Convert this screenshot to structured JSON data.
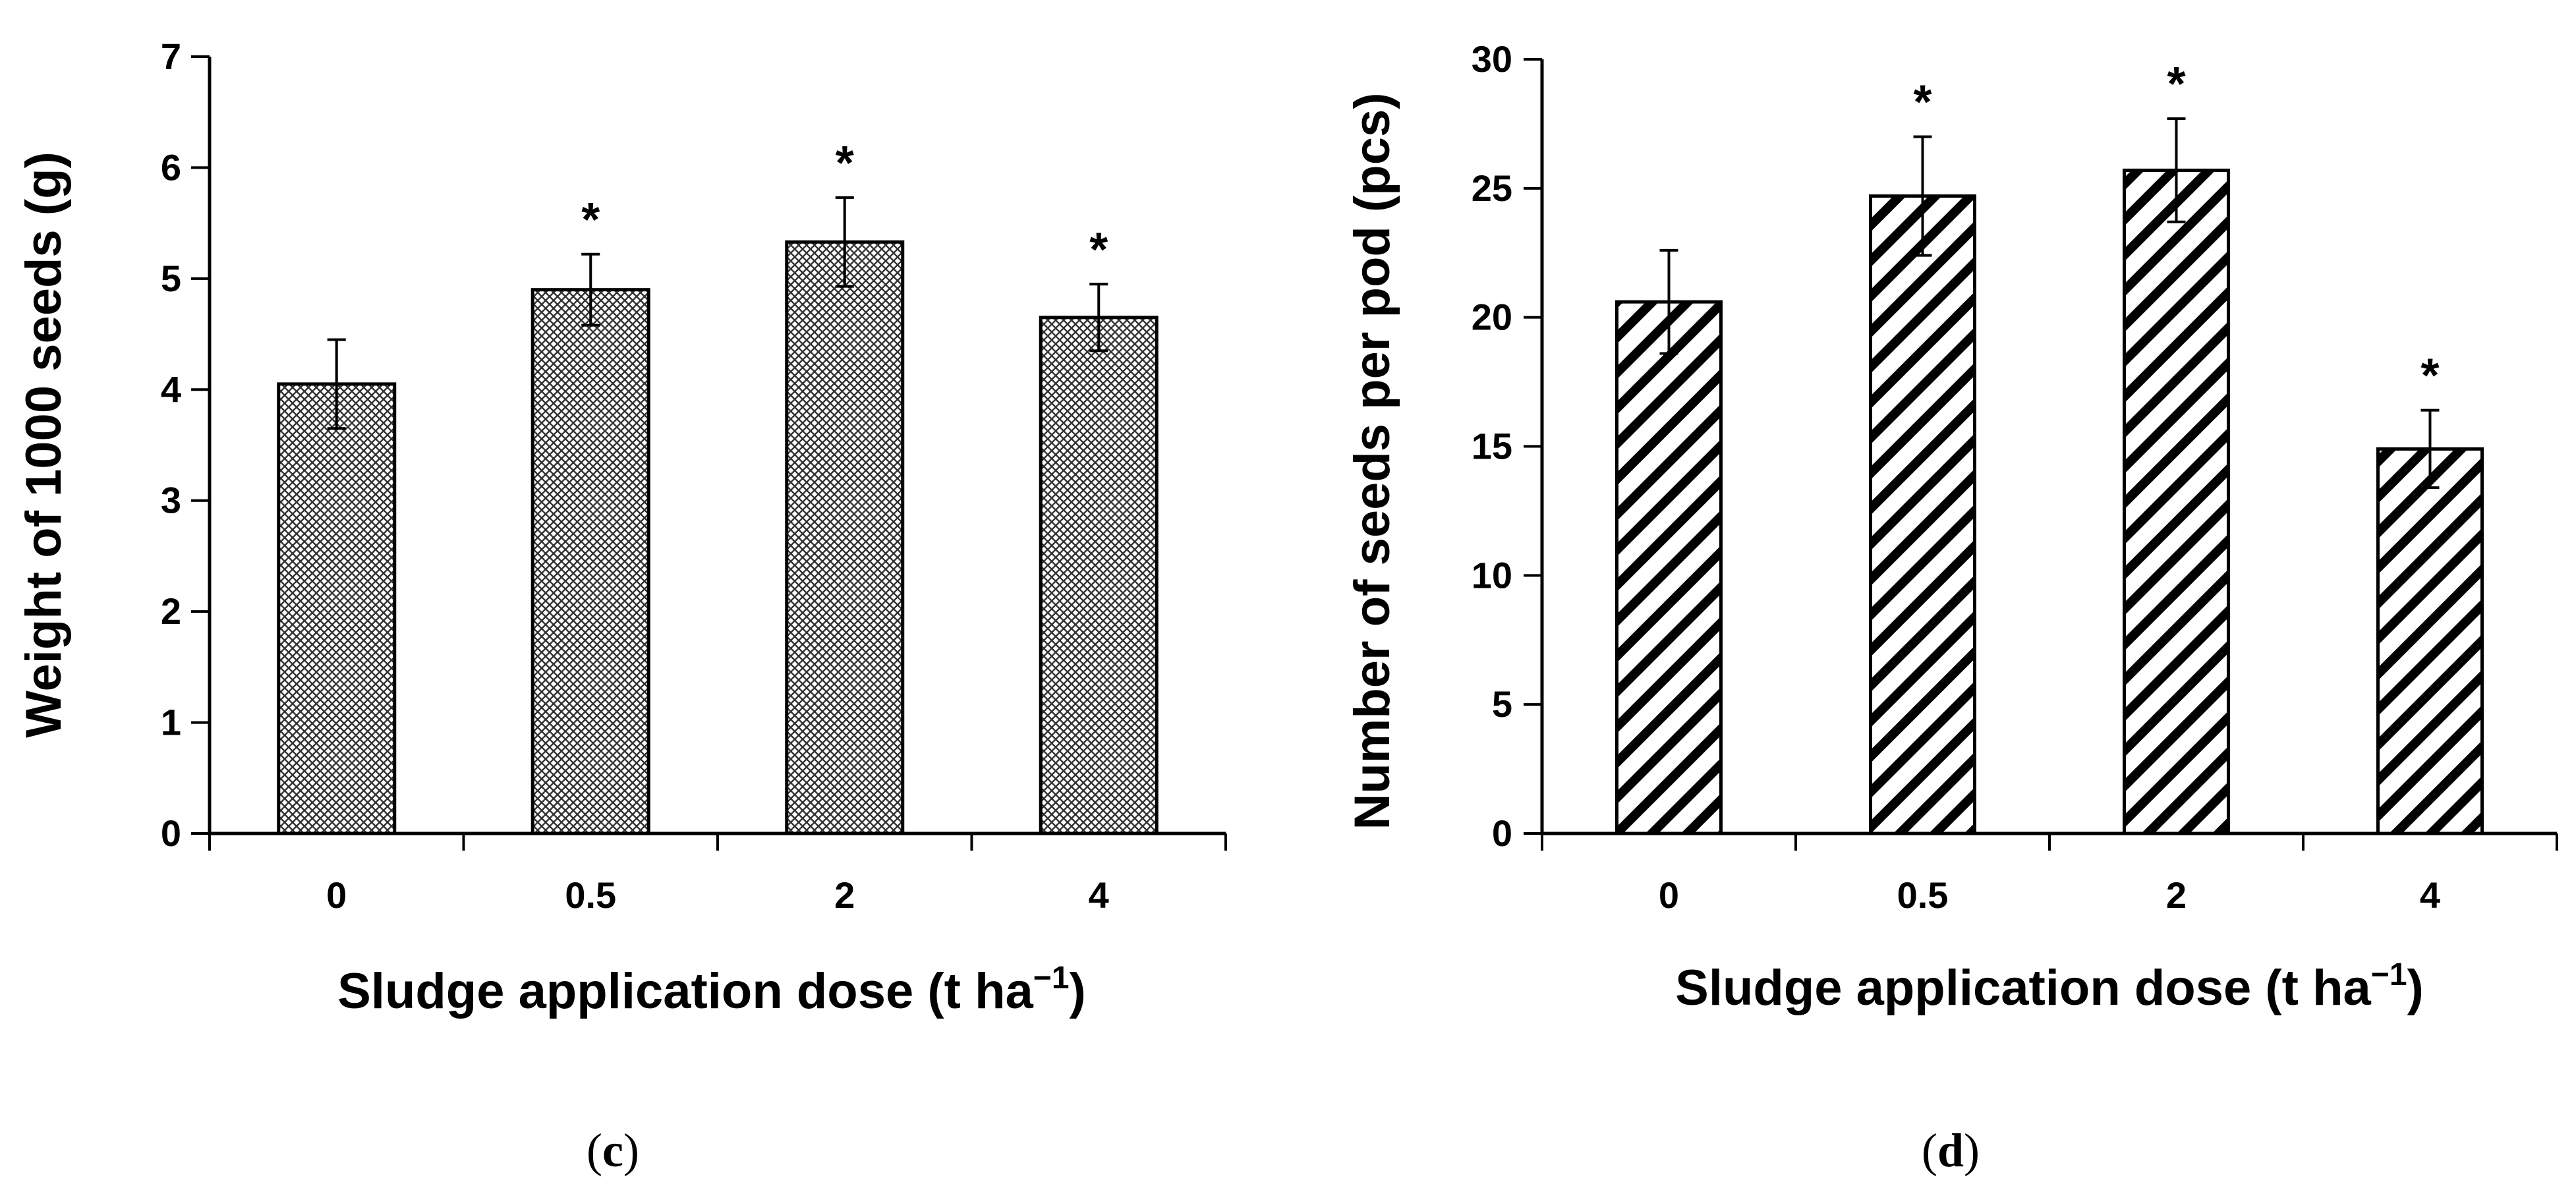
{
  "colors": {
    "ink": "#000000",
    "bar_fill": "#ffffff",
    "background": "#ffffff"
  },
  "chart_data": [
    {
      "type": "bar",
      "panel_label": "c",
      "pattern": "crosshatch",
      "categories": [
        "0",
        "0.5",
        "2",
        "4"
      ],
      "values": [
        4.05,
        4.9,
        5.33,
        4.65
      ],
      "errors": [
        0.4,
        0.32,
        0.4,
        0.3
      ],
      "significance": [
        "",
        "*",
        "*",
        "*"
      ],
      "ylabel": "Weight of 1000 seeds (g)",
      "xlabel_main": "Sludge application dose (t ha",
      "xlabel_sup": "−1",
      "xlabel_end": ")",
      "ylim": [
        0,
        7
      ],
      "yticks": [
        0,
        1,
        2,
        3,
        4,
        5,
        6,
        7
      ],
      "ytick_labels": [
        "0",
        "1",
        "2",
        "3",
        "4",
        "5",
        "6",
        "7"
      ]
    },
    {
      "type": "bar",
      "panel_label": "d",
      "pattern": "diagonal",
      "categories": [
        "0",
        "0.5",
        "2",
        "4"
      ],
      "values": [
        20.6,
        24.7,
        25.7,
        14.9
      ],
      "errors": [
        2.0,
        2.3,
        2.0,
        1.5
      ],
      "significance": [
        "",
        "*",
        "*",
        "*"
      ],
      "ylabel": "Number of seeds per pod (pcs)",
      "xlabel_main": "Sludge application dose (t ha",
      "xlabel_sup": "−1",
      "xlabel_end": ")",
      "ylim": [
        0,
        30
      ],
      "yticks": [
        0,
        5,
        10,
        15,
        20,
        25,
        30
      ],
      "ytick_labels": [
        "0",
        "5",
        "10",
        "15",
        "20",
        "25",
        "30"
      ]
    }
  ]
}
